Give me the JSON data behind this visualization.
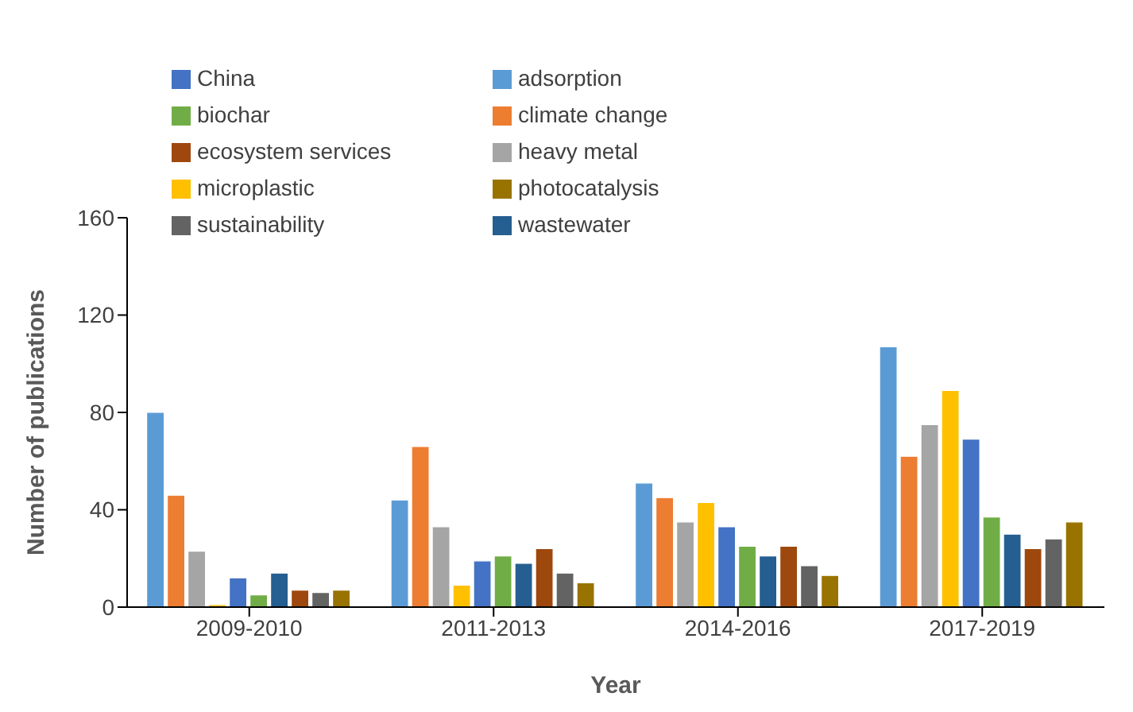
{
  "chart_data": {
    "type": "bar",
    "xlabel": "Year",
    "ylabel": "Number of publications",
    "categories": [
      "2009-2010",
      "2011-2013",
      "2014-2016",
      "2017-2019"
    ],
    "ylim": [
      0,
      160
    ],
    "yticks": [
      0,
      40,
      80,
      120,
      160
    ],
    "grid": false,
    "legend": "top left",
    "series": [
      {
        "name": "adsorption",
        "color": "#5b9bd5",
        "values": [
          80,
          44,
          51,
          107
        ]
      },
      {
        "name": "climate change",
        "color": "#ed7d31",
        "values": [
          46,
          66,
          45,
          62
        ]
      },
      {
        "name": "heavy metal",
        "color": "#a5a5a5",
        "values": [
          23,
          33,
          35,
          75
        ]
      },
      {
        "name": "microplastic",
        "color": "#ffc000",
        "values": [
          1,
          9,
          43,
          89
        ]
      },
      {
        "name": "China",
        "color": "#4472c4",
        "values": [
          12,
          19,
          33,
          69
        ]
      },
      {
        "name": "biochar",
        "color": "#70ad47",
        "values": [
          5,
          21,
          25,
          37
        ]
      },
      {
        "name": "wastewater",
        "color": "#255e91",
        "values": [
          14,
          18,
          21,
          30
        ]
      },
      {
        "name": "ecosystem services",
        "color": "#9e480e",
        "values": [
          7,
          24,
          25,
          24
        ]
      },
      {
        "name": "sustainability",
        "color": "#636363",
        "values": [
          6,
          14,
          17,
          28
        ]
      },
      {
        "name": "photocatalysis",
        "color": "#997300",
        "values": [
          7,
          10,
          13,
          35
        ]
      }
    ]
  }
}
